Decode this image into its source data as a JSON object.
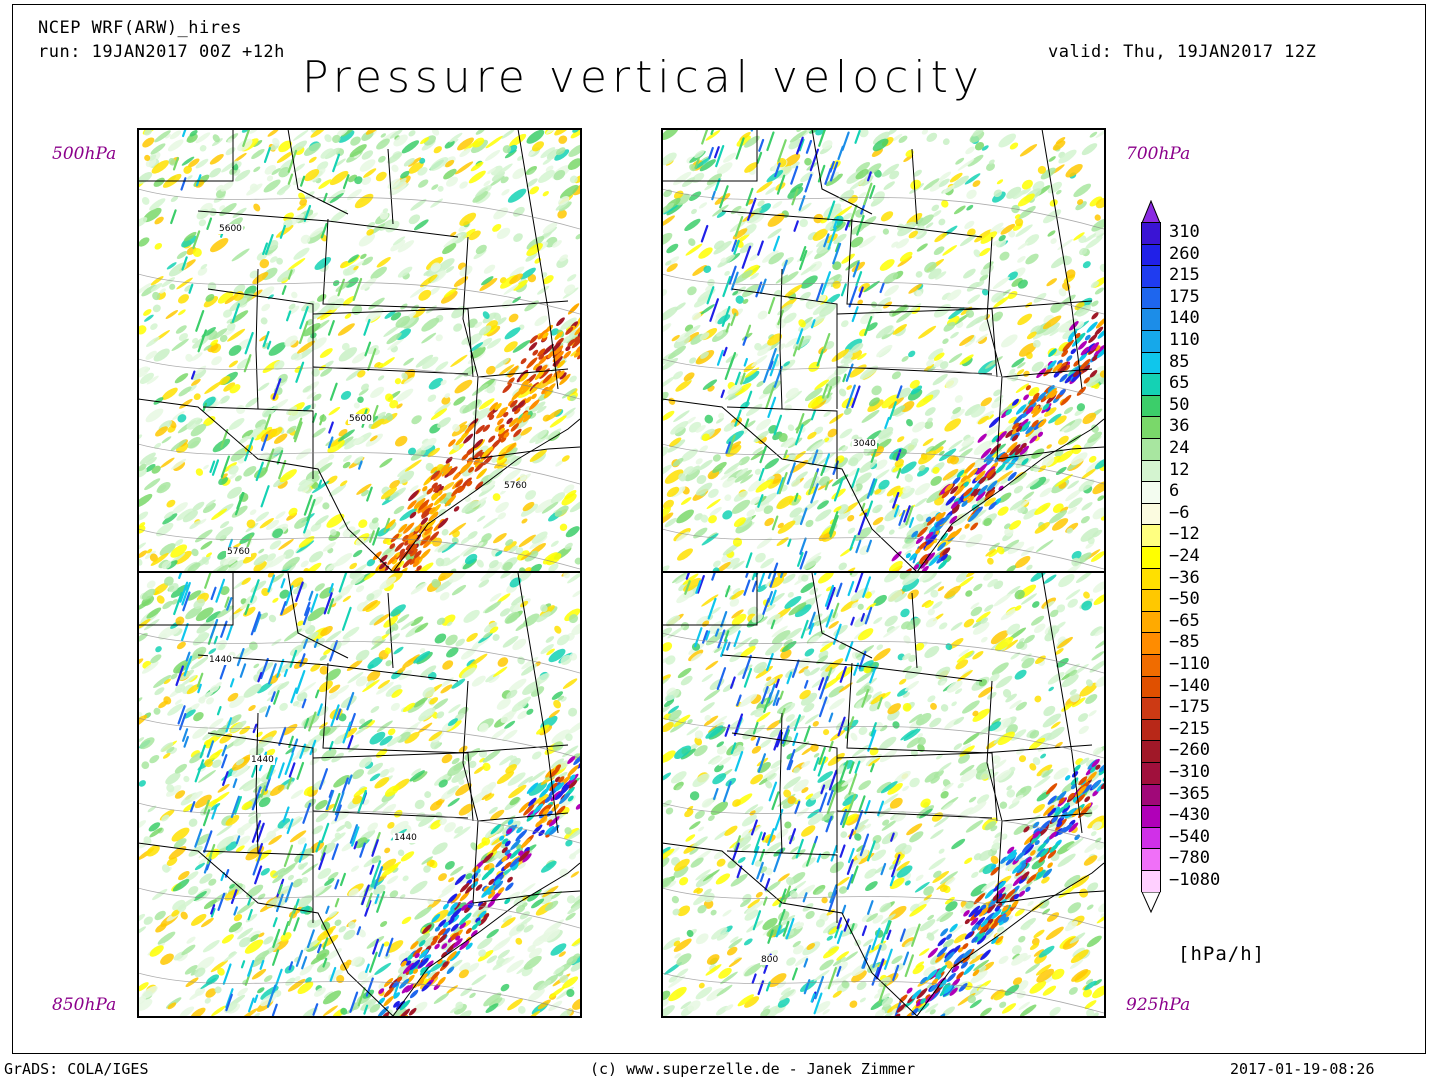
{
  "header": {
    "model": "NCEP WRF(ARW)_hires",
    "run": "run: 19JAN2017 00Z +12h",
    "valid": "valid: Thu, 19JAN2017 12Z",
    "title": "Pressure vertical velocity"
  },
  "panels": [
    {
      "level": "500hPa",
      "contours": [
        "5600",
        "5600",
        "5760",
        "5760"
      ],
      "seed": 11,
      "blueness": 0.04
    },
    {
      "level": "700hPa",
      "contours": [
        "3040"
      ],
      "seed": 23,
      "blueness": 0.22
    },
    {
      "level": "850hPa",
      "contours": [
        "1440",
        "1440",
        "1440"
      ],
      "seed": 37,
      "blueness": 0.3
    },
    {
      "level": "925hPa",
      "contours": [
        "800"
      ],
      "seed": 51,
      "blueness": 0.3
    }
  ],
  "legend": {
    "labels": [
      "310",
      "260",
      "215",
      "175",
      "140",
      "110",
      "85",
      "65",
      "50",
      "36",
      "24",
      "12",
      "6",
      "−6",
      "−12",
      "−24",
      "−36",
      "−50",
      "−65",
      "−85",
      "−110",
      "−140",
      "−175",
      "−215",
      "−260",
      "−310",
      "−365",
      "−430",
      "−540",
      "−780",
      "−1080"
    ],
    "colors": [
      "#3a14d4",
      "#2020e8",
      "#1f3cf0",
      "#1e66ee",
      "#1c8de8",
      "#16a8ea",
      "#0fc6ec",
      "#14d2b4",
      "#3cce6a",
      "#7ad86a",
      "#a8e6a0",
      "#d4f4d0",
      "#f3fcf0",
      "#fbfbe0",
      "#ffff80",
      "#ffff00",
      "#ffe000",
      "#ffc800",
      "#ffaa00",
      "#ff8c00",
      "#f06c00",
      "#e05000",
      "#cc3a14",
      "#b82818",
      "#a01828",
      "#a0103c",
      "#a00878",
      "#b000b8",
      "#d030e8",
      "#f070f8",
      "#ffd0ff"
    ],
    "top_color": "#8a2be2",
    "bottom_color": "#ffffff",
    "units": "[hPa/h]"
  },
  "footer": {
    "left": "GrADS: COLA/IGES",
    "center": "(c) www.superzelle.de - Janek Zimmer",
    "right": "2017-01-19-08:26"
  }
}
